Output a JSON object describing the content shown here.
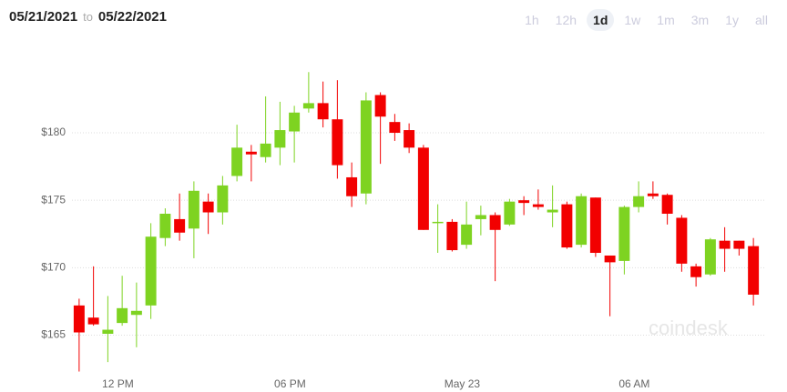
{
  "header": {
    "from": "05/21/2021",
    "connector": "to",
    "to": "05/22/2021"
  },
  "ranges": [
    "1h",
    "12h",
    "1d",
    "1w",
    "1m",
    "3m",
    "1y",
    "all"
  ],
  "selected_range": "1d",
  "chart_data": {
    "type": "candlestick",
    "watermark": "coindesk",
    "categories": [
      null,
      null,
      null,
      null,
      null,
      null,
      null,
      null,
      null,
      null,
      null,
      null,
      null,
      null,
      null,
      null,
      null,
      null,
      null,
      null,
      null,
      null,
      null,
      null,
      null,
      null,
      null,
      null,
      null,
      null,
      null,
      null,
      null,
      null,
      null,
      null,
      null,
      null,
      null,
      null,
      null,
      null,
      null,
      null,
      null,
      null,
      null,
      null
    ],
    "open": [
      167.2,
      166.3,
      165.1,
      165.9,
      166.5,
      167.2,
      172.2,
      173.6,
      172.9,
      174.9,
      174.1,
      176.8,
      178.6,
      178.2,
      178.9,
      180.1,
      181.8,
      182.2,
      181.0,
      176.7,
      175.5,
      182.8,
      180.8,
      180.2,
      178.9,
      173.3,
      173.4,
      171.7,
      173.6,
      173.9,
      173.2,
      175.0,
      174.7,
      174.1,
      174.7,
      171.7,
      175.2,
      170.9,
      170.5,
      174.5,
      175.5,
      175.4,
      173.7,
      170.1,
      169.5,
      172.0,
      172.0,
      171.6
    ],
    "high": [
      167.7,
      170.1,
      167.9,
      169.4,
      168.9,
      173.3,
      174.4,
      175.5,
      176.4,
      175.5,
      176.8,
      180.6,
      179.1,
      182.7,
      182.3,
      182.0,
      184.5,
      183.8,
      183.9,
      177.8,
      183.0,
      183.0,
      181.4,
      180.7,
      179.1,
      174.7,
      173.6,
      174.9,
      174.6,
      174.1,
      175.1,
      175.3,
      175.8,
      176.1,
      174.9,
      175.5,
      175.2,
      170.9,
      174.6,
      176.4,
      176.4,
      175.5,
      173.9,
      170.3,
      172.2,
      173.0,
      172.0,
      172.2
    ],
    "low": [
      162.3,
      165.7,
      163.0,
      165.7,
      164.1,
      166.2,
      171.6,
      172.0,
      170.7,
      172.5,
      173.2,
      176.4,
      176.4,
      177.8,
      177.6,
      177.8,
      181.5,
      180.4,
      176.6,
      174.5,
      174.7,
      177.7,
      179.4,
      178.5,
      172.8,
      171.1,
      171.2,
      171.4,
      172.4,
      169.0,
      173.1,
      173.9,
      174.3,
      173.0,
      171.4,
      171.5,
      170.8,
      166.4,
      169.5,
      174.1,
      175.1,
      173.2,
      169.7,
      168.6,
      169.4,
      169.7,
      170.9,
      167.2
    ],
    "close": [
      165.2,
      165.8,
      165.4,
      167.0,
      166.8,
      172.3,
      174.0,
      172.6,
      175.7,
      174.1,
      176.1,
      178.9,
      178.4,
      179.2,
      180.2,
      181.5,
      182.2,
      181.0,
      177.6,
      175.3,
      182.4,
      181.2,
      180.0,
      178.9,
      172.8,
      173.4,
      171.3,
      173.2,
      173.9,
      172.8,
      174.9,
      174.8,
      174.5,
      174.3,
      171.5,
      175.3,
      171.1,
      170.4,
      174.5,
      175.3,
      175.3,
      174.0,
      170.3,
      169.3,
      172.1,
      171.4,
      171.4,
      168.0
    ],
    "up_color": "#7ed321",
    "down_color": "#f20000",
    "ylim": [
      162.2,
      185.8
    ],
    "yticks": [
      {
        "value": 165,
        "label": "$165"
      },
      {
        "value": 170,
        "label": "$170"
      },
      {
        "value": 175,
        "label": "$175"
      },
      {
        "value": 180,
        "label": "$180"
      }
    ],
    "xlim": [
      -0.5,
      47.5
    ],
    "xticks": [
      {
        "value": 2.7,
        "label": "12 PM"
      },
      {
        "value": 14.7,
        "label": "06 PM"
      },
      {
        "value": 26.7,
        "label": "May 23"
      },
      {
        "value": 38.7,
        "label": "06 AM"
      }
    ],
    "grid": true
  }
}
